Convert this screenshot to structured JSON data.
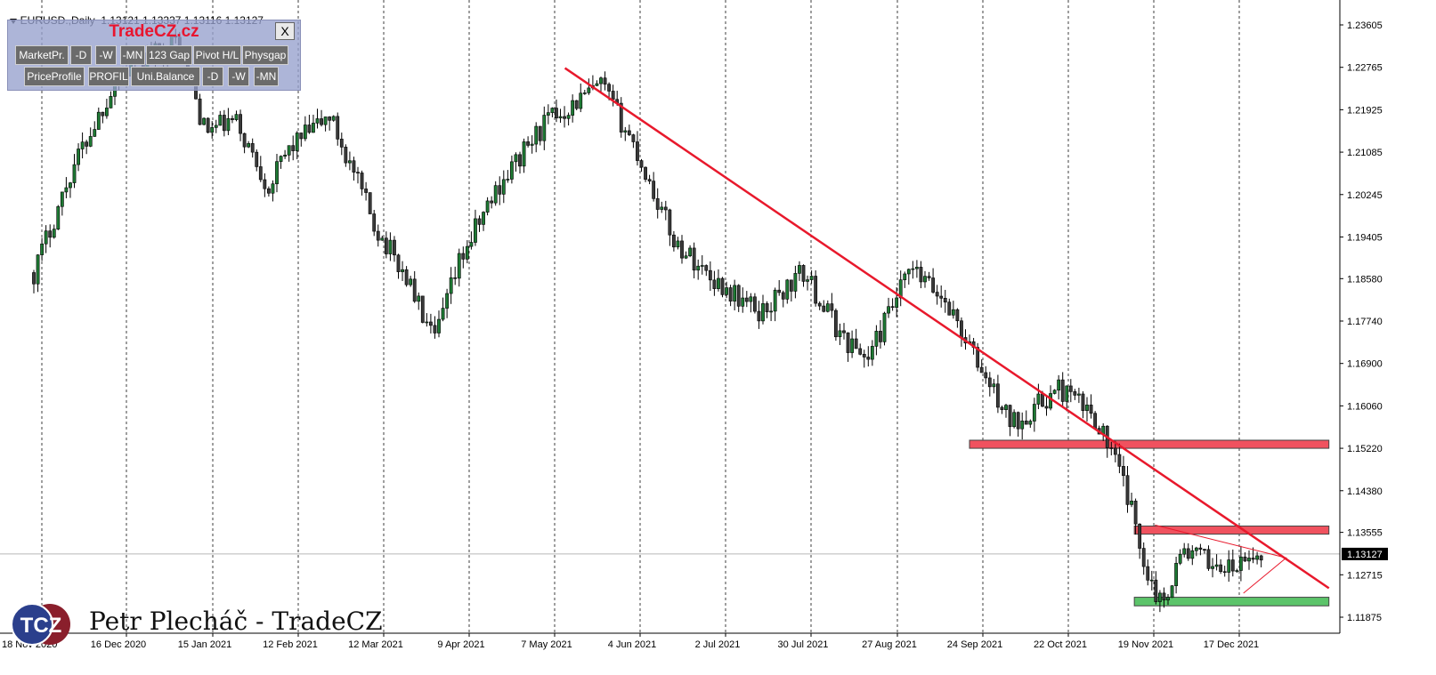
{
  "header": {
    "symbol": "EURUSD.,Daily",
    "ohlc": "1.13121 1.13337 1.13116 1.13127"
  },
  "panel": {
    "title": "TradeCZ.cz",
    "close_label": "X",
    "row1": [
      "MarketPr.",
      "-D",
      "-W",
      "-MN",
      "123 Gap",
      "Pivot H/L",
      "Physgap"
    ],
    "row2": [
      "PriceProfile",
      "PROFIL",
      "Uni.Balance",
      "-D",
      "-W",
      "-MN"
    ]
  },
  "watermark": {
    "logo_text": "TCZ",
    "author": "Petr Plecháč - TradeCZ"
  },
  "colors": {
    "trendline": "#e8192c",
    "resistance_zone": "#f0525f",
    "support_zone": "#5cc46a",
    "candle_up": "#1e7a34",
    "candle_down": "#3a3a3a"
  },
  "chart_data": {
    "type": "candlestick",
    "title": "",
    "symbol": "EURUSD.",
    "timeframe": "Daily",
    "ylim": [
      1.11875,
      1.23605
    ],
    "grid": "vertical dashed",
    "y_ticks": [
      "1.23605",
      "1.22765",
      "1.21925",
      "1.21085",
      "1.20245",
      "1.19405",
      "1.18580",
      "1.17740",
      "1.16900",
      "1.16060",
      "1.15220",
      "1.14380",
      "1.13555",
      "1.12715",
      "1.11875"
    ],
    "x_ticks": [
      "18 Nov 2020",
      "16 Dec 2020",
      "15 Jan 2021",
      "12 Feb 2021",
      "12 Mar 2021",
      "9 Apr 2021",
      "7 May 2021",
      "4 Jun 2021",
      "2 Jul 2021",
      "30 Jul 2021",
      "27 Aug 2021",
      "24 Sep 2021",
      "22 Oct 2021",
      "19 Nov 2021",
      "17 Dec 2021"
    ],
    "current_price": "1.13127",
    "close_path": [
      [
        "18 Nov 2020",
        1.187
      ],
      [
        "1 Dec 2020",
        1.208
      ],
      [
        "16 Dec 2020",
        1.226
      ],
      [
        "6 Jan 2021",
        1.233
      ],
      [
        "15 Jan 2021",
        1.215
      ],
      [
        "25 Jan 2021",
        1.217
      ],
      [
        "5 Feb 2021",
        1.204
      ],
      [
        "12 Feb 2021",
        1.212
      ],
      [
        "25 Feb 2021",
        1.218
      ],
      [
        "12 Mar 2021",
        1.196
      ],
      [
        "23 Mar 2021",
        1.185
      ],
      [
        "31 Mar 2021",
        1.173
      ],
      [
        "9 Apr 2021",
        1.19
      ],
      [
        "21 Apr 2021",
        1.204
      ],
      [
        "7 May 2021",
        1.217
      ],
      [
        "25 May 2021",
        1.224
      ],
      [
        "4 Jun 2021",
        1.213
      ],
      [
        "18 Jun 2021",
        1.193
      ],
      [
        "2 Jul 2021",
        1.185
      ],
      [
        "16 Jul 2021",
        1.179
      ],
      [
        "30 Jul 2021",
        1.187
      ],
      [
        "12 Aug 2021",
        1.174
      ],
      [
        "20 Aug 2021",
        1.17
      ],
      [
        "27 Aug 2021",
        1.179
      ],
      [
        "3 Sep 2021",
        1.1875
      ],
      [
        "15 Sep 2021",
        1.181
      ],
      [
        "24 Sep 2021",
        1.17
      ],
      [
        "6 Oct 2021",
        1.157
      ],
      [
        "22 Oct 2021",
        1.164
      ],
      [
        "3 Nov 2021",
        1.158
      ],
      [
        "12 Nov 2021",
        1.145
      ],
      [
        "19 Nov 2021",
        1.129
      ],
      [
        "24 Nov 2021",
        1.121
      ],
      [
        "1 Dec 2021",
        1.132
      ],
      [
        "17 Dec 2021",
        1.128
      ],
      [
        "27 Dec 2021",
        1.1313
      ]
    ],
    "annotations": {
      "trendline": {
        "from": [
          "13 May 2021",
          1.2275
        ],
        "to": [
          "18 Jan 2022",
          1.1245
        ]
      },
      "zones": [
        {
          "role": "resistance",
          "from": "24 Sep 2021",
          "to": "18 Jan 2022",
          "y": [
            1.1522,
            1.1538
          ]
        },
        {
          "role": "resistance",
          "from": "17 Nov 2021",
          "to": "18 Jan 2022",
          "y": [
            1.1352,
            1.1368
          ]
        },
        {
          "role": "support",
          "from": "17 Nov 2021",
          "to": "18 Jan 2022",
          "y": [
            1.121,
            1.1227
          ]
        }
      ],
      "triangle": {
        "apex": [
          "4 Jan 2022",
          1.1305
        ],
        "top": [
          "22 Nov 2021",
          1.137
        ],
        "bottom": [
          "21 Dec 2021",
          1.1235
        ]
      }
    }
  }
}
